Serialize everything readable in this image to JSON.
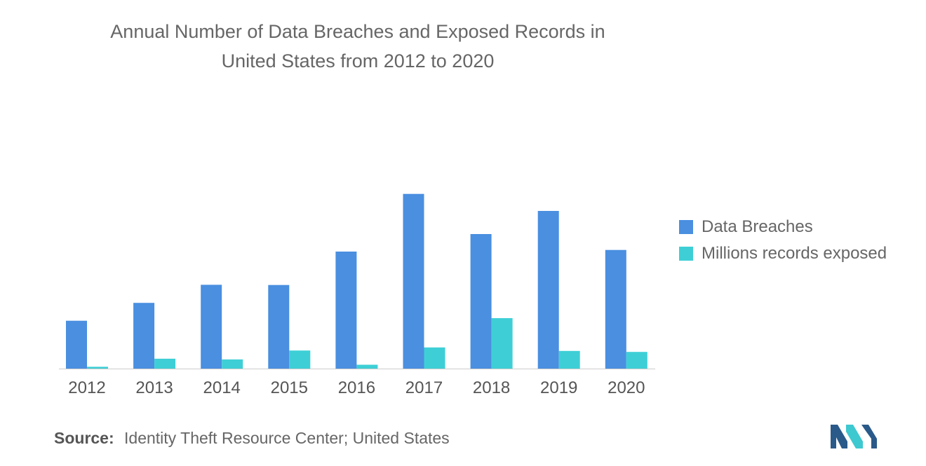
{
  "colors": {
    "data_breaches": "#4a8fe0",
    "records_exposed": "#3ecfd6",
    "axis": "#cccccc",
    "logo_dark": "#2a5a8a",
    "logo_light": "#3ec8d0"
  },
  "title_line1": "Annual Number of Data Breaches and Exposed Records in",
  "title_line2": "United States from 2012 to 2020",
  "source": {
    "label": "Source:",
    "text": "Identity Theft Resource Center; United States"
  },
  "logo": {
    "icon": "mordor-intelligence-logo"
  },
  "chart_data": {
    "type": "bar",
    "categories": [
      "2012",
      "2013",
      "2014",
      "2015",
      "2016",
      "2017",
      "2018",
      "2019",
      "2020"
    ],
    "series": [
      {
        "name": "Data Breaches",
        "values": [
          447,
          614,
          783,
          781,
          1093,
          1632,
          1257,
          1473,
          1108
        ]
      },
      {
        "name": "Millions records exposed",
        "values": [
          17,
          92,
          86,
          169,
          36,
          198,
          471,
          165,
          156
        ]
      }
    ],
    "ylim": [
      0,
      1800
    ],
    "legend": "right",
    "grid": false
  }
}
